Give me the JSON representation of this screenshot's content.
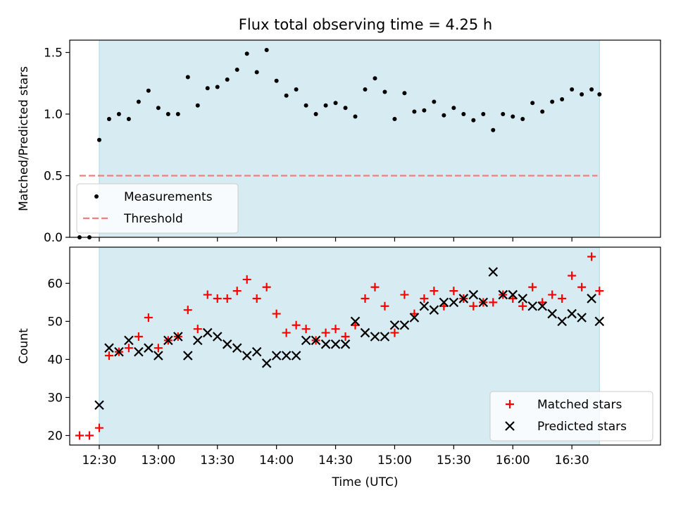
{
  "title": "Flux total observing time = 4.25 h",
  "colors": {
    "shade": "#add8e6",
    "measure": "#000000",
    "threshold": "#f08080",
    "matched": "#ff0000",
    "predicted": "#000000"
  },
  "chart_data": [
    {
      "type": "scatter",
      "ylabel": "Matched/Predicted stars",
      "ylim": [
        0,
        1.6
      ],
      "yticks": [
        "0.0",
        "0.5",
        "1.0",
        "1.5"
      ],
      "xlim_min": [
        735,
        1035
      ],
      "shaded_range_min": [
        750,
        1004
      ],
      "legend_position": "lower-left",
      "threshold": {
        "name": "Threshold",
        "value": 0.5,
        "x_min": [
          740,
          1003
        ]
      },
      "series": [
        {
          "name": "Measurements",
          "marker": "dot",
          "x_min": [
            740,
            745,
            750,
            755,
            760,
            765,
            770,
            775,
            780,
            785,
            790,
            795,
            800,
            805,
            810,
            815,
            820,
            825,
            830,
            835,
            840,
            845,
            850,
            855,
            860,
            865,
            870,
            875,
            880,
            885,
            890,
            895,
            900,
            905,
            910,
            915,
            920,
            925,
            930,
            935,
            940,
            945,
            950,
            955,
            960,
            965,
            970,
            975,
            980,
            985,
            990,
            995,
            1000,
            1004
          ],
          "y": [
            0.0,
            0.0,
            0.79,
            0.96,
            1.0,
            0.96,
            1.1,
            1.19,
            1.05,
            1.0,
            1.0,
            1.3,
            1.07,
            1.21,
            1.22,
            1.28,
            1.36,
            1.49,
            1.34,
            1.52,
            1.27,
            1.15,
            1.2,
            1.07,
            1.0,
            1.07,
            1.09,
            1.05,
            0.98,
            1.2,
            1.29,
            1.18,
            0.96,
            1.17,
            1.02,
            1.03,
            1.1,
            0.99,
            1.05,
            1.0,
            0.95,
            1.0,
            0.87,
            1.0,
            0.98,
            0.96,
            1.09,
            1.02,
            1.1,
            1.12,
            1.2,
            1.16,
            1.2,
            1.16
          ]
        }
      ]
    },
    {
      "type": "scatter",
      "ylabel": "Count",
      "xlabel": "Time (UTC)",
      "ylim": [
        17.5,
        69.5
      ],
      "yticks": [
        "20",
        "30",
        "40",
        "50",
        "60"
      ],
      "xlim_min": [
        735,
        1035
      ],
      "xticks": [
        "12:30",
        "13:00",
        "13:30",
        "14:00",
        "14:30",
        "15:00",
        "15:30",
        "16:00",
        "16:30"
      ],
      "shaded_range_min": [
        750,
        1004
      ],
      "legend_position": "lower-right",
      "series": [
        {
          "name": "Matched stars",
          "marker": "plus",
          "x_min": [
            740,
            745,
            750,
            755,
            760,
            765,
            770,
            775,
            780,
            785,
            790,
            795,
            800,
            805,
            810,
            815,
            820,
            825,
            830,
            835,
            840,
            845,
            850,
            855,
            860,
            865,
            870,
            875,
            880,
            885,
            890,
            895,
            900,
            905,
            910,
            915,
            920,
            925,
            930,
            935,
            940,
            945,
            950,
            955,
            960,
            965,
            970,
            975,
            980,
            985,
            990,
            995,
            1000,
            1004
          ],
          "y": [
            20,
            20,
            22,
            41,
            42,
            43,
            46,
            51,
            43,
            45,
            46,
            53,
            48,
            57,
            56,
            56,
            58,
            61,
            56,
            59,
            52,
            47,
            49,
            48,
            45,
            47,
            48,
            46,
            49,
            56,
            59,
            54,
            47,
            57,
            52,
            56,
            58,
            54,
            58,
            56,
            54,
            55,
            55,
            57,
            56,
            54,
            59,
            55,
            57,
            56,
            62,
            59,
            67,
            58
          ]
        },
        {
          "name": "Predicted stars",
          "marker": "x",
          "x_min": [
            750,
            755,
            760,
            765,
            770,
            775,
            780,
            785,
            790,
            795,
            800,
            805,
            810,
            815,
            820,
            825,
            830,
            835,
            840,
            845,
            850,
            855,
            860,
            865,
            870,
            875,
            880,
            885,
            890,
            895,
            900,
            905,
            910,
            915,
            920,
            925,
            930,
            935,
            940,
            945,
            950,
            955,
            960,
            965,
            970,
            975,
            980,
            985,
            990,
            995,
            1000,
            1004
          ],
          "y": [
            28,
            43,
            42,
            45,
            42,
            43,
            41,
            45,
            46,
            41,
            45,
            47,
            46,
            44,
            43,
            41,
            42,
            39,
            41,
            41,
            41,
            45,
            45,
            44,
            44,
            44,
            50,
            47,
            46,
            46,
            49,
            49,
            51,
            54,
            53,
            55,
            55,
            56,
            57,
            55,
            63,
            57,
            57,
            56,
            54,
            54,
            52,
            50,
            52,
            51,
            56,
            50
          ]
        }
      ]
    }
  ]
}
